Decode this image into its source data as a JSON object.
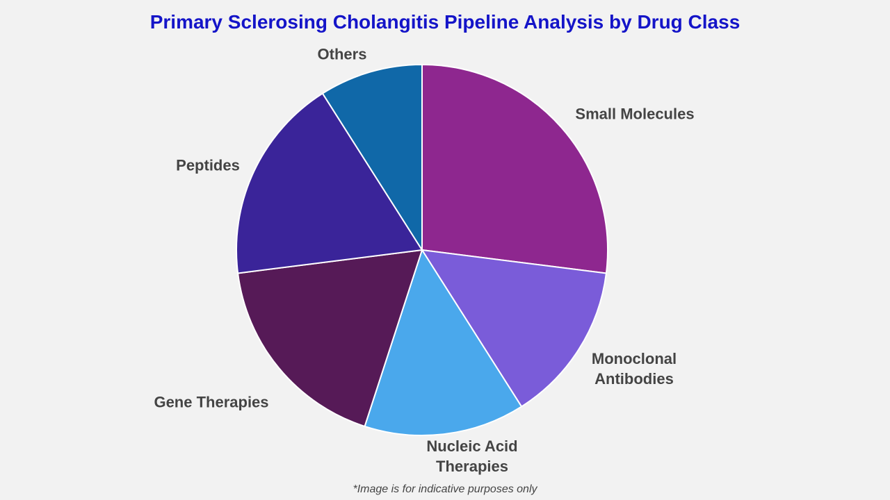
{
  "chart_data": {
    "type": "pie",
    "title": "Primary Sclerosing Cholangitis Pipeline Analysis by Drug Class",
    "categories": [
      "Small Molecules",
      "Monoclonal Antibodies",
      "Nucleic Acid Therapies",
      "Gene Therapies",
      "Peptides",
      "Others"
    ],
    "values": [
      27,
      14,
      14,
      18,
      18,
      9
    ],
    "colors": [
      "#8e278f",
      "#7a5cd9",
      "#4aa8ec",
      "#561a57",
      "#3a2499",
      "#1068a8"
    ],
    "footnote": "*Image is for indicative purposes only"
  }
}
